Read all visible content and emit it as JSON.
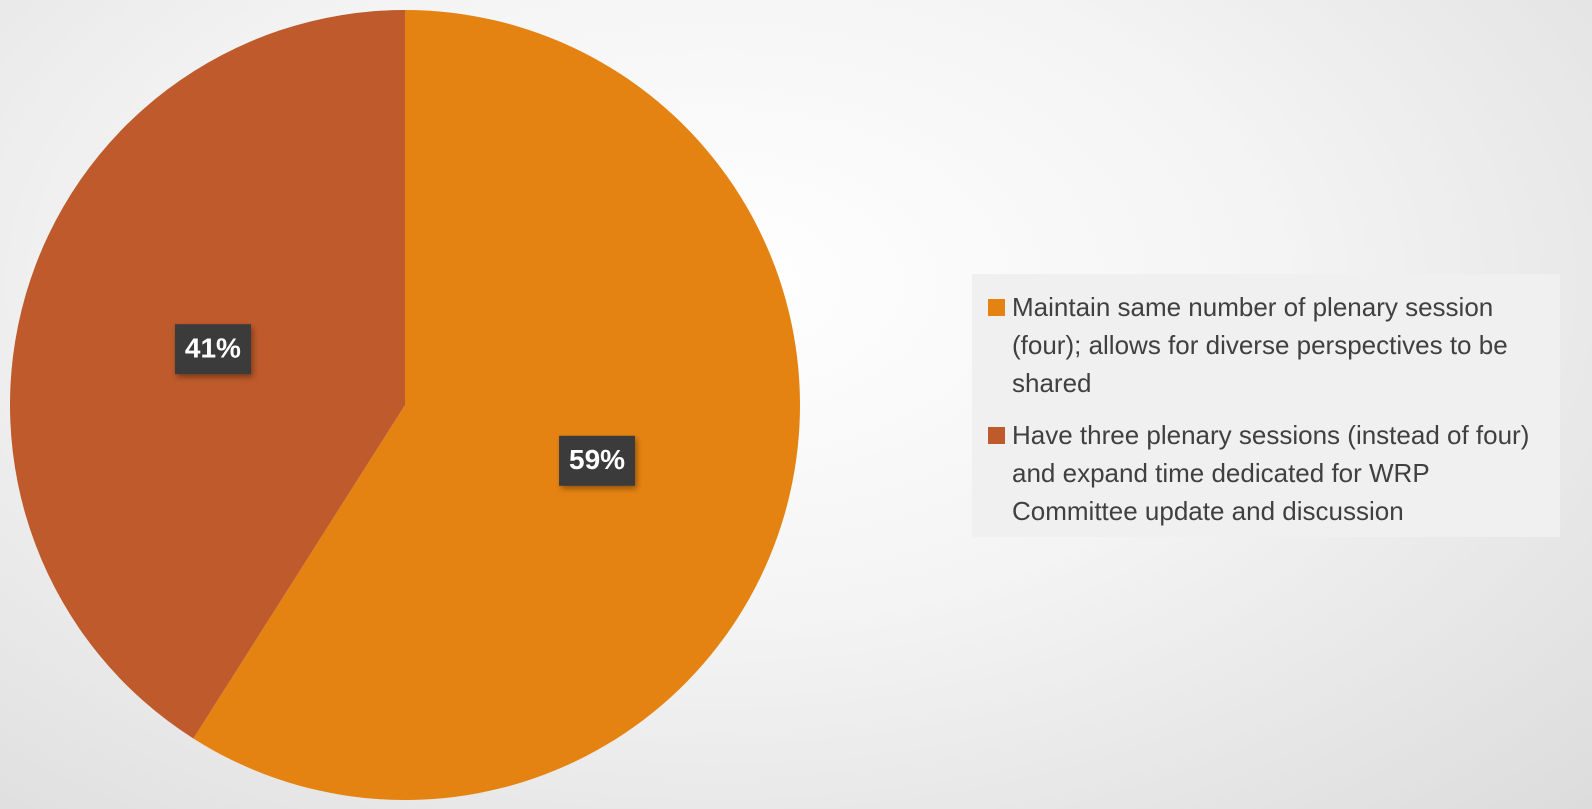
{
  "chart_data": {
    "type": "pie",
    "categories": [
      "Maintain same number of plenary session (four); allows for diverse perspectives to be shared",
      "Have three plenary sessions (instead of four) and expand time dedicated for WRP Committee update and discussion"
    ],
    "values": [
      59,
      41
    ],
    "value_labels": [
      "59%",
      "41%"
    ],
    "colors": [
      "#e58312",
      "#be5a2b"
    ],
    "legend": "right"
  }
}
